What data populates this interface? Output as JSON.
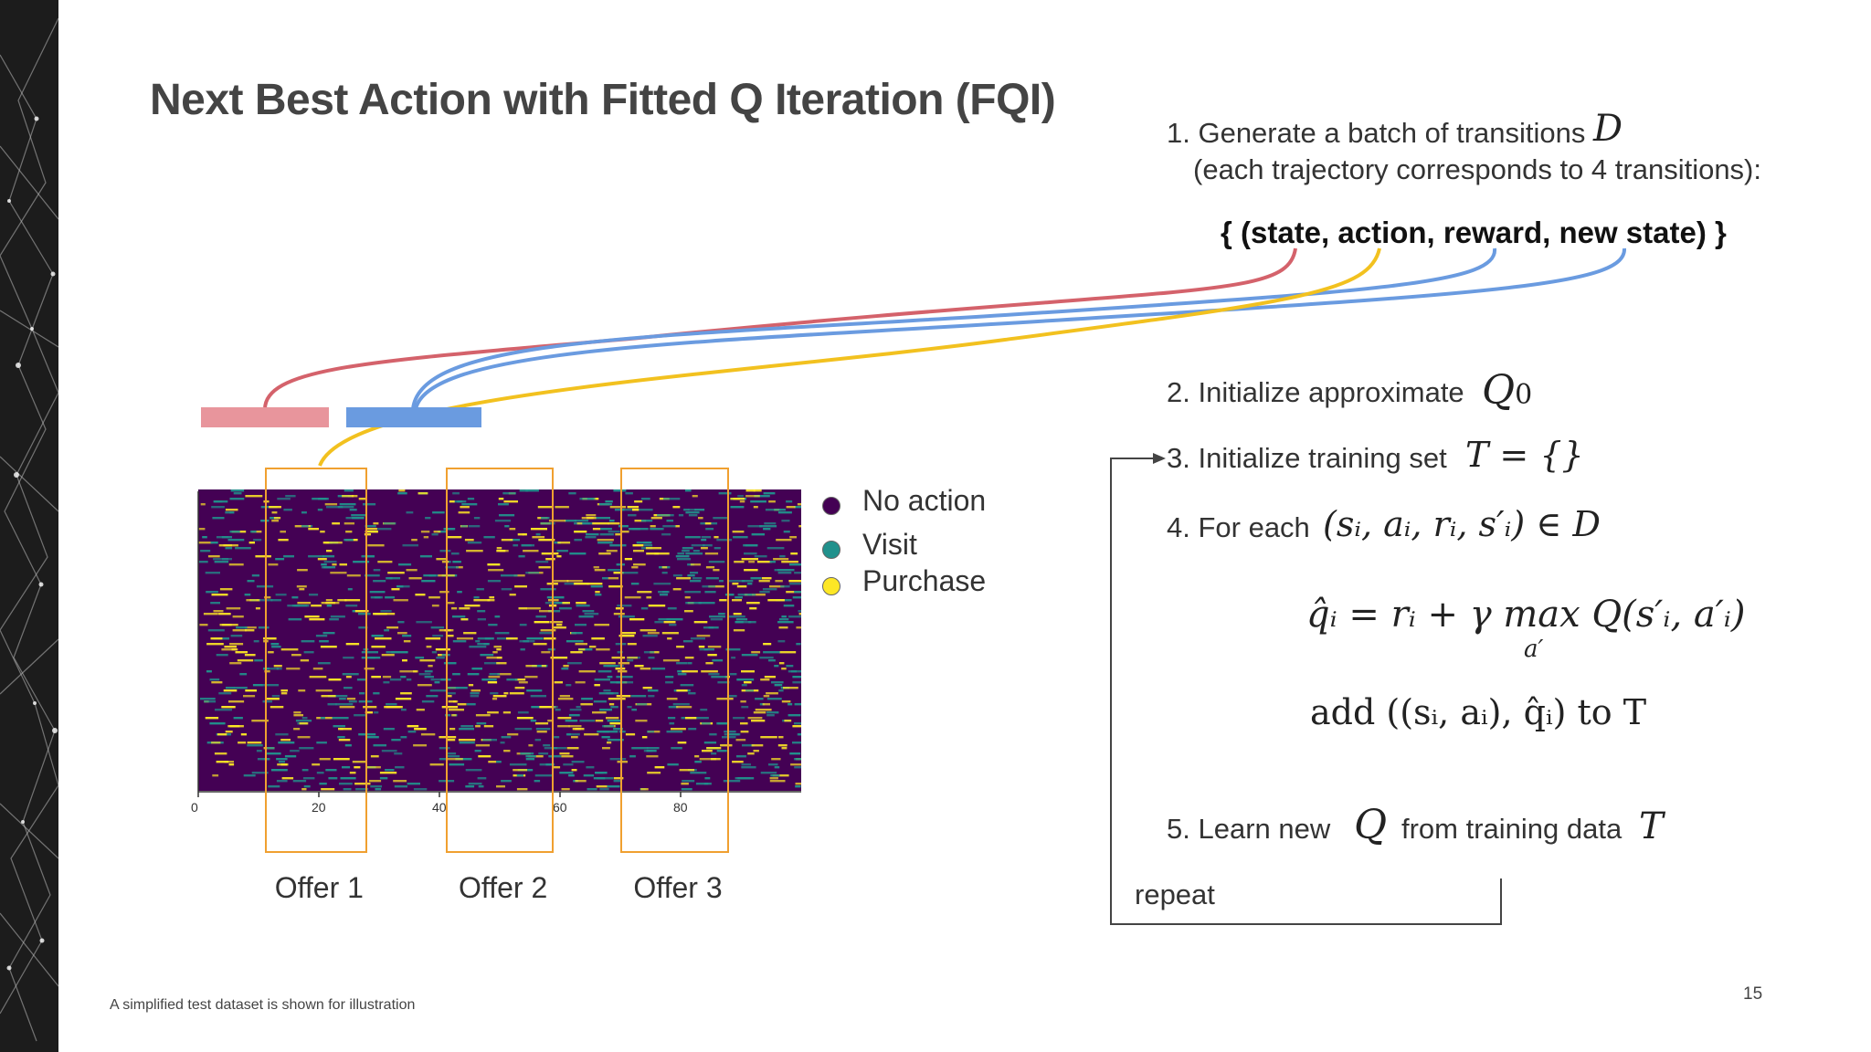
{
  "slide": {
    "title": "Next Best Action with Fitted Q Iteration (FQI)",
    "page_number": "15",
    "footnote": "A simplified test dataset is shown for illustration"
  },
  "steps": {
    "s1_line1": "1. Generate a batch of transitions",
    "s1_math": "D",
    "s1_line2": "(each trajectory corresponds to 4 transitions):",
    "tuple": "{ (state, action, reward, new state) }",
    "s2_text": "2. Initialize approximate",
    "s2_math": "Q",
    "s2_sub": "0",
    "s3_text": "3. Initialize training set",
    "s3_math": "T = {}",
    "s4_text": "4. For each",
    "s4_math": "(sᵢ, aᵢ, rᵢ, s′ᵢ) ∈ D",
    "q_update": "q̂ᵢ = rᵢ + γ max Q(s′ᵢ,  a′ᵢ)",
    "q_update_sub": "a′",
    "add_rule": "add ((sᵢ, aᵢ),  q̂ᵢ) to T",
    "s5_prefix": "5.  Learn new",
    "s5_math_q": "Q",
    "s5_mid": "from training data",
    "s5_math_t": "T",
    "repeat": "repeat"
  },
  "legend": {
    "items": [
      {
        "label": "No action",
        "color": "#440154"
      },
      {
        "label": "Visit",
        "color": "#21918c"
      },
      {
        "label": "Purchase",
        "color": "#fde725"
      }
    ]
  },
  "heatmap": {
    "x_ticks": [
      "0",
      "20",
      "40",
      "60",
      "80"
    ],
    "x_max": 100,
    "background_color": "#440154",
    "visit_color": "#21918c",
    "purchase_color": "#fde725",
    "offers": [
      {
        "label": "Offer 1",
        "start": 11,
        "end": 28
      },
      {
        "label": "Offer 2",
        "start": 41,
        "end": 59
      },
      {
        "label": "Offer 3",
        "start": 70,
        "end": 88
      }
    ]
  },
  "colors": {
    "state_connector": "#d4626b",
    "action_connector": "#f2c11f",
    "reward_connector": "#6a9be0",
    "state_bar": "#e8959c",
    "new_state_bar": "#6a9be0",
    "offer_frame": "#f0a030"
  }
}
